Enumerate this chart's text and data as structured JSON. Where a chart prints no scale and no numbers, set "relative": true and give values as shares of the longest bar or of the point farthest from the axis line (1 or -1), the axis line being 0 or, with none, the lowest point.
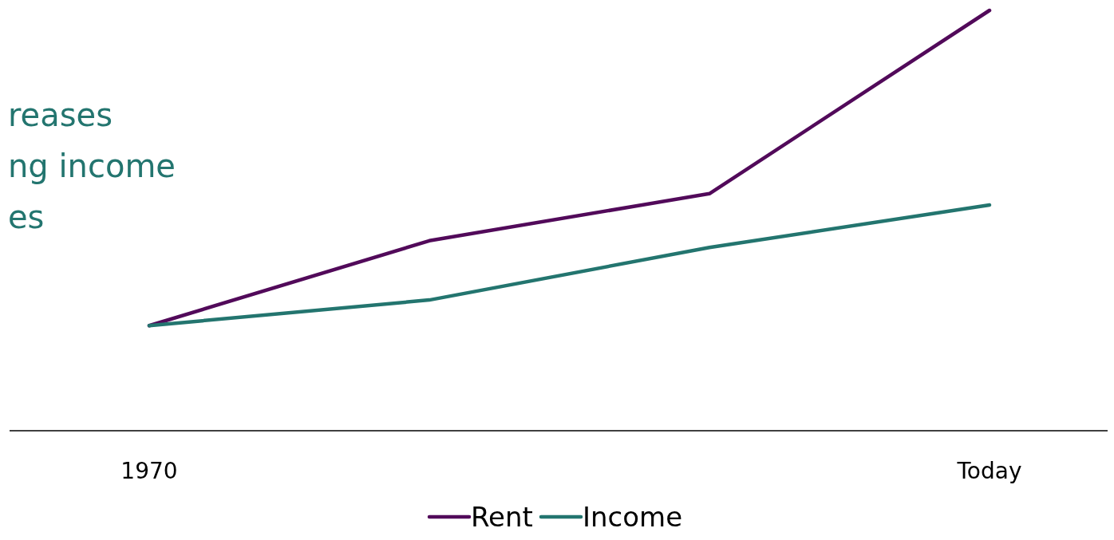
{
  "chart_data": {
    "type": "line",
    "relative": true,
    "categories": [
      "1970",
      null,
      null,
      "Today"
    ],
    "series": [
      {
        "name": "Rent",
        "color": "#520a5a",
        "values": [
          0.25,
          0.452,
          0.564,
          1
        ]
      },
      {
        "name": "Income",
        "color": "#23756f",
        "values": [
          0.25,
          0.311,
          0.436,
          0.537
        ]
      }
    ],
    "annotations": [
      "reases",
      "ng income",
      "es"
    ],
    "legend": "bottom",
    "marker": "none",
    "line_style": "solid"
  }
}
